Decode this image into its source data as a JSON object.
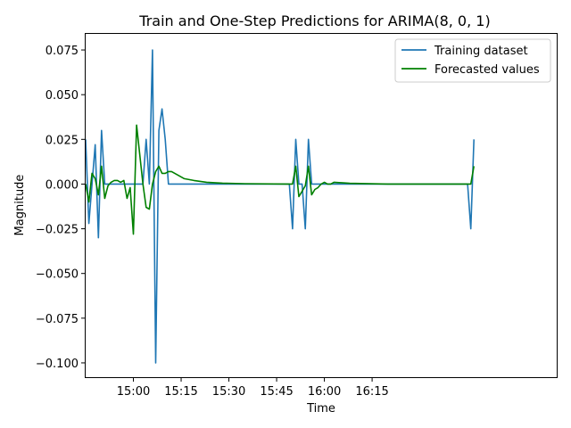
{
  "chart_data": {
    "type": "line",
    "title": "Train and One-Step Predictions for ARIMA(8, 0, 1)",
    "xlabel": "Time",
    "ylabel": "Magnitude",
    "xlim": [
      "14:45",
      "17:13"
    ],
    "ylim": [
      -0.108,
      0.084
    ],
    "x_ticks": [
      "15:00",
      "15:15",
      "15:30",
      "15:45",
      "16:00",
      "16:15"
    ],
    "y_ticks": [
      -0.1,
      -0.075,
      -0.05,
      -0.025,
      0.0,
      0.025,
      0.05,
      0.075
    ],
    "y_tick_labels": [
      "−0.100",
      "−0.075",
      "−0.050",
      "−0.025",
      "0.000",
      "0.025",
      "0.050",
      "0.075"
    ],
    "grid": false,
    "legend": {
      "position": "top-right",
      "entries": [
        "Training dataset",
        "Forecasted values"
      ]
    },
    "series": [
      {
        "name": "Training dataset",
        "color": "#1f77b4",
        "points": [
          [
            "14:45",
            0.025
          ],
          [
            "14:46",
            -0.022
          ],
          [
            "14:48",
            0.022
          ],
          [
            "14:49",
            -0.03
          ],
          [
            "14:50",
            0.03
          ],
          [
            "14:51",
            0.0
          ],
          [
            "15:03",
            0.0
          ],
          [
            "15:04",
            0.025
          ],
          [
            "15:05",
            0.0
          ],
          [
            "15:06",
            0.075
          ],
          [
            "15:07",
            -0.1
          ],
          [
            "15:08",
            0.03
          ],
          [
            "15:09",
            0.042
          ],
          [
            "15:10",
            0.025
          ],
          [
            "15:11",
            0.0
          ],
          [
            "15:49",
            0.0
          ],
          [
            "15:50",
            -0.025
          ],
          [
            "15:51",
            0.025
          ],
          [
            "15:52",
            0.0
          ],
          [
            "15:53",
            0.0
          ],
          [
            "15:54",
            -0.025
          ],
          [
            "15:55",
            0.025
          ],
          [
            "15:56",
            0.0
          ],
          [
            "16:45",
            0.0
          ],
          [
            "16:46",
            -0.025
          ],
          [
            "16:47",
            0.025
          ]
        ]
      },
      {
        "name": "Forecasted values",
        "color": "#008000",
        "points": [
          [
            "14:45",
            0.0
          ],
          [
            "14:46",
            -0.01
          ],
          [
            "14:47",
            0.006
          ],
          [
            "14:48",
            0.003
          ],
          [
            "14:49",
            -0.006
          ],
          [
            "14:50",
            0.01
          ],
          [
            "14:51",
            -0.008
          ],
          [
            "14:52",
            -0.001
          ],
          [
            "14:53",
            0.001
          ],
          [
            "14:54",
            0.002
          ],
          [
            "14:55",
            0.002
          ],
          [
            "14:56",
            0.001
          ],
          [
            "14:57",
            0.002
          ],
          [
            "14:58",
            -0.008
          ],
          [
            "14:59",
            -0.002
          ],
          [
            "15:00",
            -0.028
          ],
          [
            "15:01",
            0.033
          ],
          [
            "15:03",
            0.0
          ],
          [
            "15:04",
            -0.013
          ],
          [
            "15:05",
            -0.014
          ],
          [
            "15:06",
            0.0
          ],
          [
            "15:07",
            0.007
          ],
          [
            "15:08",
            0.01
          ],
          [
            "15:09",
            0.006
          ],
          [
            "15:10",
            0.006
          ],
          [
            "15:11",
            0.007
          ],
          [
            "15:12",
            0.007
          ],
          [
            "15:14",
            0.005
          ],
          [
            "15:16",
            0.003
          ],
          [
            "15:19",
            0.002
          ],
          [
            "15:23",
            0.001
          ],
          [
            "15:28",
            0.0005
          ],
          [
            "15:35",
            0.0002
          ],
          [
            "15:49",
            0.0
          ],
          [
            "15:50",
            0.0
          ],
          [
            "15:51",
            0.01
          ],
          [
            "15:52",
            -0.007
          ],
          [
            "15:53",
            -0.004
          ],
          [
            "15:54",
            -0.001
          ],
          [
            "15:55",
            0.01
          ],
          [
            "15:56",
            -0.006
          ],
          [
            "15:57",
            -0.003
          ],
          [
            "15:58",
            -0.002
          ],
          [
            "15:59",
            0.0
          ],
          [
            "16:00",
            0.001
          ],
          [
            "16:01",
            0.0
          ],
          [
            "16:02",
            0.0
          ],
          [
            "16:03",
            0.001
          ],
          [
            "16:08",
            0.0004
          ],
          [
            "16:20",
            0.0
          ],
          [
            "16:45",
            0.0
          ],
          [
            "16:46",
            0.0
          ],
          [
            "16:47",
            0.01
          ]
        ]
      }
    ]
  }
}
